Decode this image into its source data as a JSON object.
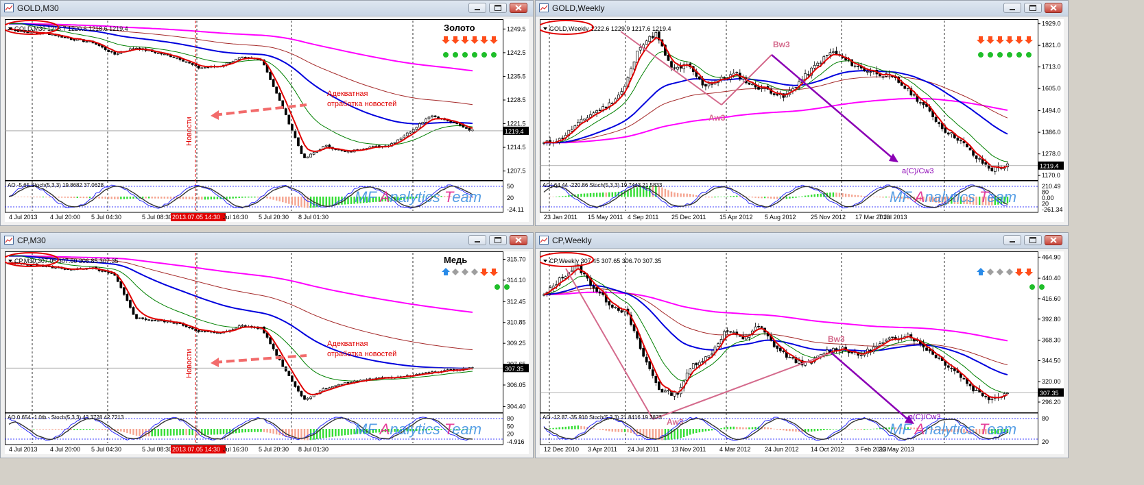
{
  "colors": {
    "background": "#ffffff",
    "candle": "#000000",
    "ema_fast": "#e00000",
    "ema_mid": "#008000",
    "ema_slow": "#0000dd",
    "ema_long": "#a52a2a",
    "ema_200": "#ff00ff",
    "wave": "#d46a8c",
    "wave_arrow": "#8b00b5",
    "annotation_arrow": "#f26b6b",
    "watermark": "#3a8ee0",
    "ao_up": "#33dd33",
    "ao_down": "#f5a591"
  },
  "watermark": {
    "prefix": "MF ",
    "a": "A",
    "mid": "nalytics ",
    "t": "T",
    "suffix": "eam"
  },
  "icons": {
    "down_arrow": "red-down-arrow-icon",
    "up_arrow": "blue-up-arrow-icon",
    "neutral": "grey-diamond-icon",
    "dot": "green-dot-icon"
  },
  "windows": [
    {
      "title": "GOLD,M30",
      "header": "GOLD,M30  1218.7 1220.6 1218.6 1219.4",
      "badge": "Золото",
      "signal_arrows": [
        "down",
        "down",
        "down",
        "down",
        "down",
        "down"
      ],
      "signal_dots": 6,
      "price_labels": [
        "1249.5",
        "1242.5",
        "1235.5",
        "1228.5",
        "1221.5",
        "1214.5",
        "1207.5"
      ],
      "current_price": "1219.4",
      "indicator_header": "AO -5.65  Stoch(5,3,3) 19.8682 37.0628",
      "indicator_labels": [
        "50",
        "20",
        "-24.11"
      ],
      "time_labels": [
        "4 Jul 2013",
        "4 Jul 20:00",
        "5 Jul 04:30",
        "5 Jul 08:30",
        "2013.07.05 14:30",
        "Jul 16:30",
        "5 Jul 20:30",
        "8 Jul 01:30"
      ],
      "news_label": "Новости",
      "annotation": [
        "Адекватная",
        "отработка новостей"
      ]
    },
    {
      "title": "GOLD,Weekly",
      "header": "GOLD,Weekly  1222.6 1229.9 1217.6 1219.4",
      "signal_arrows": [
        "down",
        "down",
        "down",
        "down",
        "down",
        "down"
      ],
      "signal_dots": 6,
      "price_labels": [
        "1929.0",
        "1821.0",
        "1713.0",
        "1605.0",
        "1494.0",
        "1386.0",
        "1278.0",
        "1170.0"
      ],
      "current_price": "1219.4",
      "indicator_header": "AO(-64.44 -220.86  Stoch(5,3,3) 19.7443 21.5833",
      "indicator_labels": [
        "210.49",
        "80",
        "0.00",
        "20",
        "-261.34"
      ],
      "time_labels": [
        "23 Jan 2011",
        "15 May 2011",
        "4 Sep 2011",
        "25 Dec 2011",
        "15 Apr 2012",
        "5 Aug 2012",
        "25 Nov 2012",
        "17 Mar 2013",
        "7 Jul 2013"
      ],
      "waves": [
        "Aw3",
        "Bw3",
        "a(C)/Cw3"
      ]
    },
    {
      "title": "CP,M30",
      "header": "CP,M30  307.05 307.60 306.85 307.35",
      "badge": "Медь",
      "signal_arrows": [
        "up",
        "neutral",
        "neutral",
        "neutral",
        "down",
        "down"
      ],
      "signal_dots": 2,
      "price_labels": [
        "315.70",
        "314.10",
        "312.45",
        "310.85",
        "309.25",
        "307.65",
        "306.05",
        "304.40"
      ],
      "current_price": "307.35",
      "indicator_header": "AO 0.654  -1.0tb - Stoch(5,3,3) 43.3728 42.7213",
      "indicator_labels": [
        "80",
        "50",
        "20",
        "-4.916"
      ],
      "time_labels": [
        "4 Jul 2013",
        "4 Jul 20:00",
        "5 Jul 04:30",
        "5 Jul 08:30",
        "2013.07.05 14:30",
        "Jul 16:30",
        "5 Jul 20:30",
        "8 Jul 01:30"
      ],
      "news_label": "Новости",
      "annotation": [
        "Адекватная",
        "отработка новостей"
      ]
    },
    {
      "title": "CP,Weekly",
      "header": "CP,Weekly  307.45 307.65 306.70 307.35",
      "signal_arrows": [
        "up",
        "neutral",
        "neutral",
        "neutral",
        "down",
        "down"
      ],
      "signal_dots": 2,
      "price_labels": [
        "464.90",
        "440.40",
        "416.60",
        "392.80",
        "368.30",
        "344.50",
        "320.00",
        "296.20"
      ],
      "current_price": "307.35",
      "indicator_header": "AO -12.87  -35.910  Stoch(5,3,3) 21.8416 19.3873",
      "indicator_labels": [
        "80",
        "20"
      ],
      "time_labels": [
        "12 Dec 2010",
        "3 Apr 2011",
        "24 Jul 2011",
        "13 Nov 2011",
        "4 Mar 2012",
        "24 Jun 2012",
        "14 Oct 2012",
        "3 Feb 2013",
        "26 May 2013"
      ],
      "waves": [
        "Aw3",
        "Bw3",
        "a(C)/Cw3"
      ]
    }
  ],
  "chart_data": [
    {
      "type": "line",
      "title": "GOLD,M30",
      "xlabel": "",
      "ylabel": "",
      "ylim": [
        1205,
        1252
      ],
      "x": [
        "4 Jul 2013",
        "4 Jul 20:00",
        "5 Jul 04:30",
        "5 Jul 08:30",
        "2013.07.05 14:30",
        "Jul 16:30",
        "5 Jul 20:30",
        "8 Jul 01:30"
      ],
      "series": [
        {
          "values": [
            1249.5,
            1247.6,
            1244.1,
            1241.0,
            1240.8,
            1211.0,
            1214.5,
            1219.4
          ]
        }
      ]
    },
    {
      "type": "line",
      "title": "GOLD,Weekly",
      "xlabel": "",
      "ylabel": "",
      "ylim": [
        1150,
        1945
      ],
      "x": [
        "23 Jan 2011",
        "15 May 2011",
        "4 Sep 2011",
        "25 Dec 2011",
        "15 Apr 2012",
        "5 Aug 2012",
        "25 Nov 2012",
        "17 Mar 2013",
        "7 Jul 2013"
      ],
      "series": [
        {
          "values": [
            1340,
            1500,
            1880,
            1620,
            1640,
            1620,
            1770,
            1600,
            1219.4
          ]
        }
      ]
    },
    {
      "type": "line",
      "title": "CP,M30",
      "xlabel": "",
      "ylabel": "",
      "ylim": [
        304.0,
        316.2
      ],
      "x": [
        "4 Jul 2013",
        "4 Jul 20:00",
        "5 Jul 04:30",
        "5 Jul 08:30",
        "2013.07.05 14:30",
        "Jul 16:30",
        "5 Jul 20:30",
        "8 Jul 01:30"
      ],
      "series": [
        {
          "values": [
            315.4,
            315.1,
            314.9,
            311.0,
            310.6,
            304.9,
            306.8,
            307.35
          ]
        }
      ]
    },
    {
      "type": "line",
      "title": "CP,Weekly",
      "xlabel": "",
      "ylabel": "",
      "ylim": [
        285,
        470
      ],
      "x": [
        "12 Dec 2010",
        "3 Apr 2011",
        "24 Jul 2011",
        "13 Nov 2011",
        "4 Mar 2012",
        "24 Jun 2012",
        "14 Oct 2012",
        "3 Feb 2013",
        "26 May 2013"
      ],
      "series": [
        {
          "values": [
            430,
            450,
            400,
            330,
            380,
            345,
            360,
            370,
            307.35
          ]
        }
      ]
    }
  ]
}
